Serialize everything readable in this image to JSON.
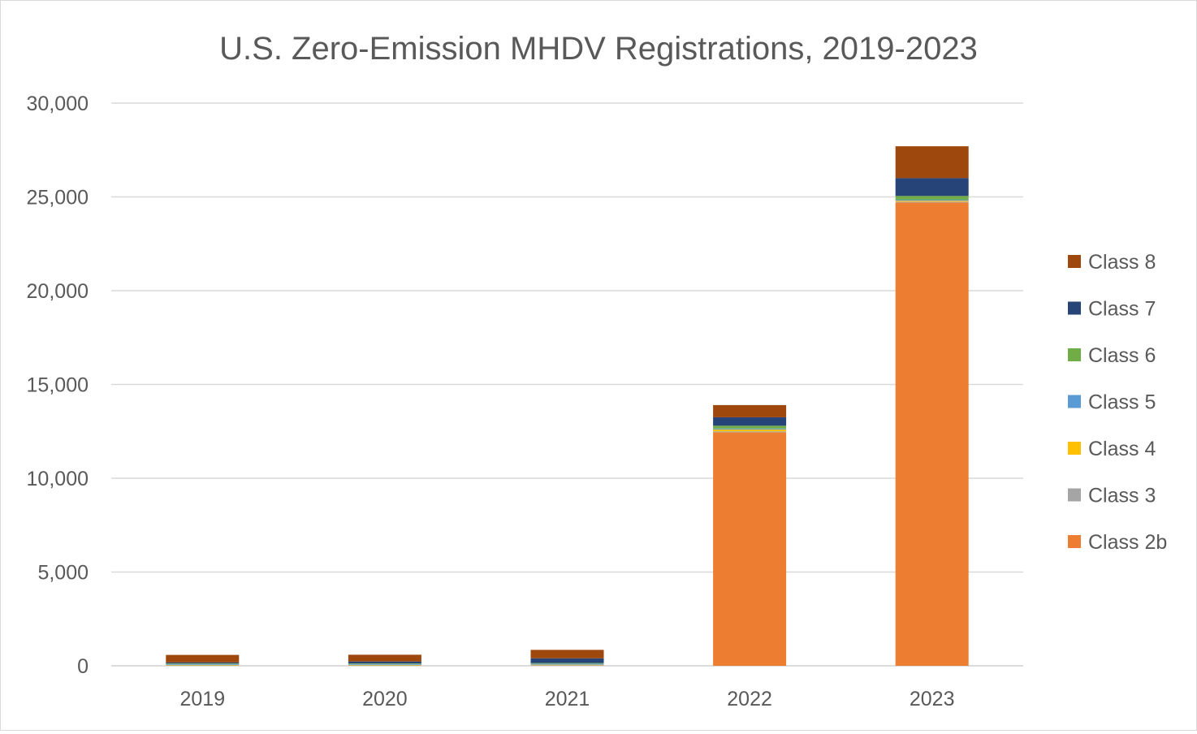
{
  "chart_data": {
    "type": "bar",
    "stacked": true,
    "title": "U.S. Zero-Emission MHDV Registrations, 2019-2023",
    "xlabel": "",
    "ylabel": "",
    "categories": [
      "2019",
      "2020",
      "2021",
      "2022",
      "2023"
    ],
    "ylim": [
      0,
      30000
    ],
    "yticks": [
      0,
      5000,
      10000,
      15000,
      20000,
      25000,
      30000
    ],
    "ytick_labels": [
      "0",
      "5,000",
      "10,000",
      "15,000",
      "20,000",
      "25,000",
      "30,000"
    ],
    "grid": true,
    "legend_position": "right",
    "series": [
      {
        "name": "Class 2b",
        "color": "#ED7D31",
        "values": [
          0,
          0,
          0,
          12450,
          24700
        ]
      },
      {
        "name": "Class 3",
        "color": "#A5A5A5",
        "values": [
          20,
          20,
          30,
          50,
          50
        ]
      },
      {
        "name": "Class 4",
        "color": "#FFC000",
        "values": [
          30,
          30,
          30,
          100,
          50
        ]
      },
      {
        "name": "Class 5",
        "color": "#5B9BD5",
        "values": [
          50,
          50,
          60,
          50,
          50
        ]
      },
      {
        "name": "Class 6",
        "color": "#70AD47",
        "values": [
          30,
          30,
          30,
          150,
          200
        ]
      },
      {
        "name": "Class 7",
        "color": "#264478",
        "values": [
          50,
          100,
          250,
          450,
          950
        ]
      },
      {
        "name": "Class 8",
        "color": "#9E480E",
        "values": [
          400,
          360,
          450,
          650,
          1700
        ]
      }
    ]
  }
}
